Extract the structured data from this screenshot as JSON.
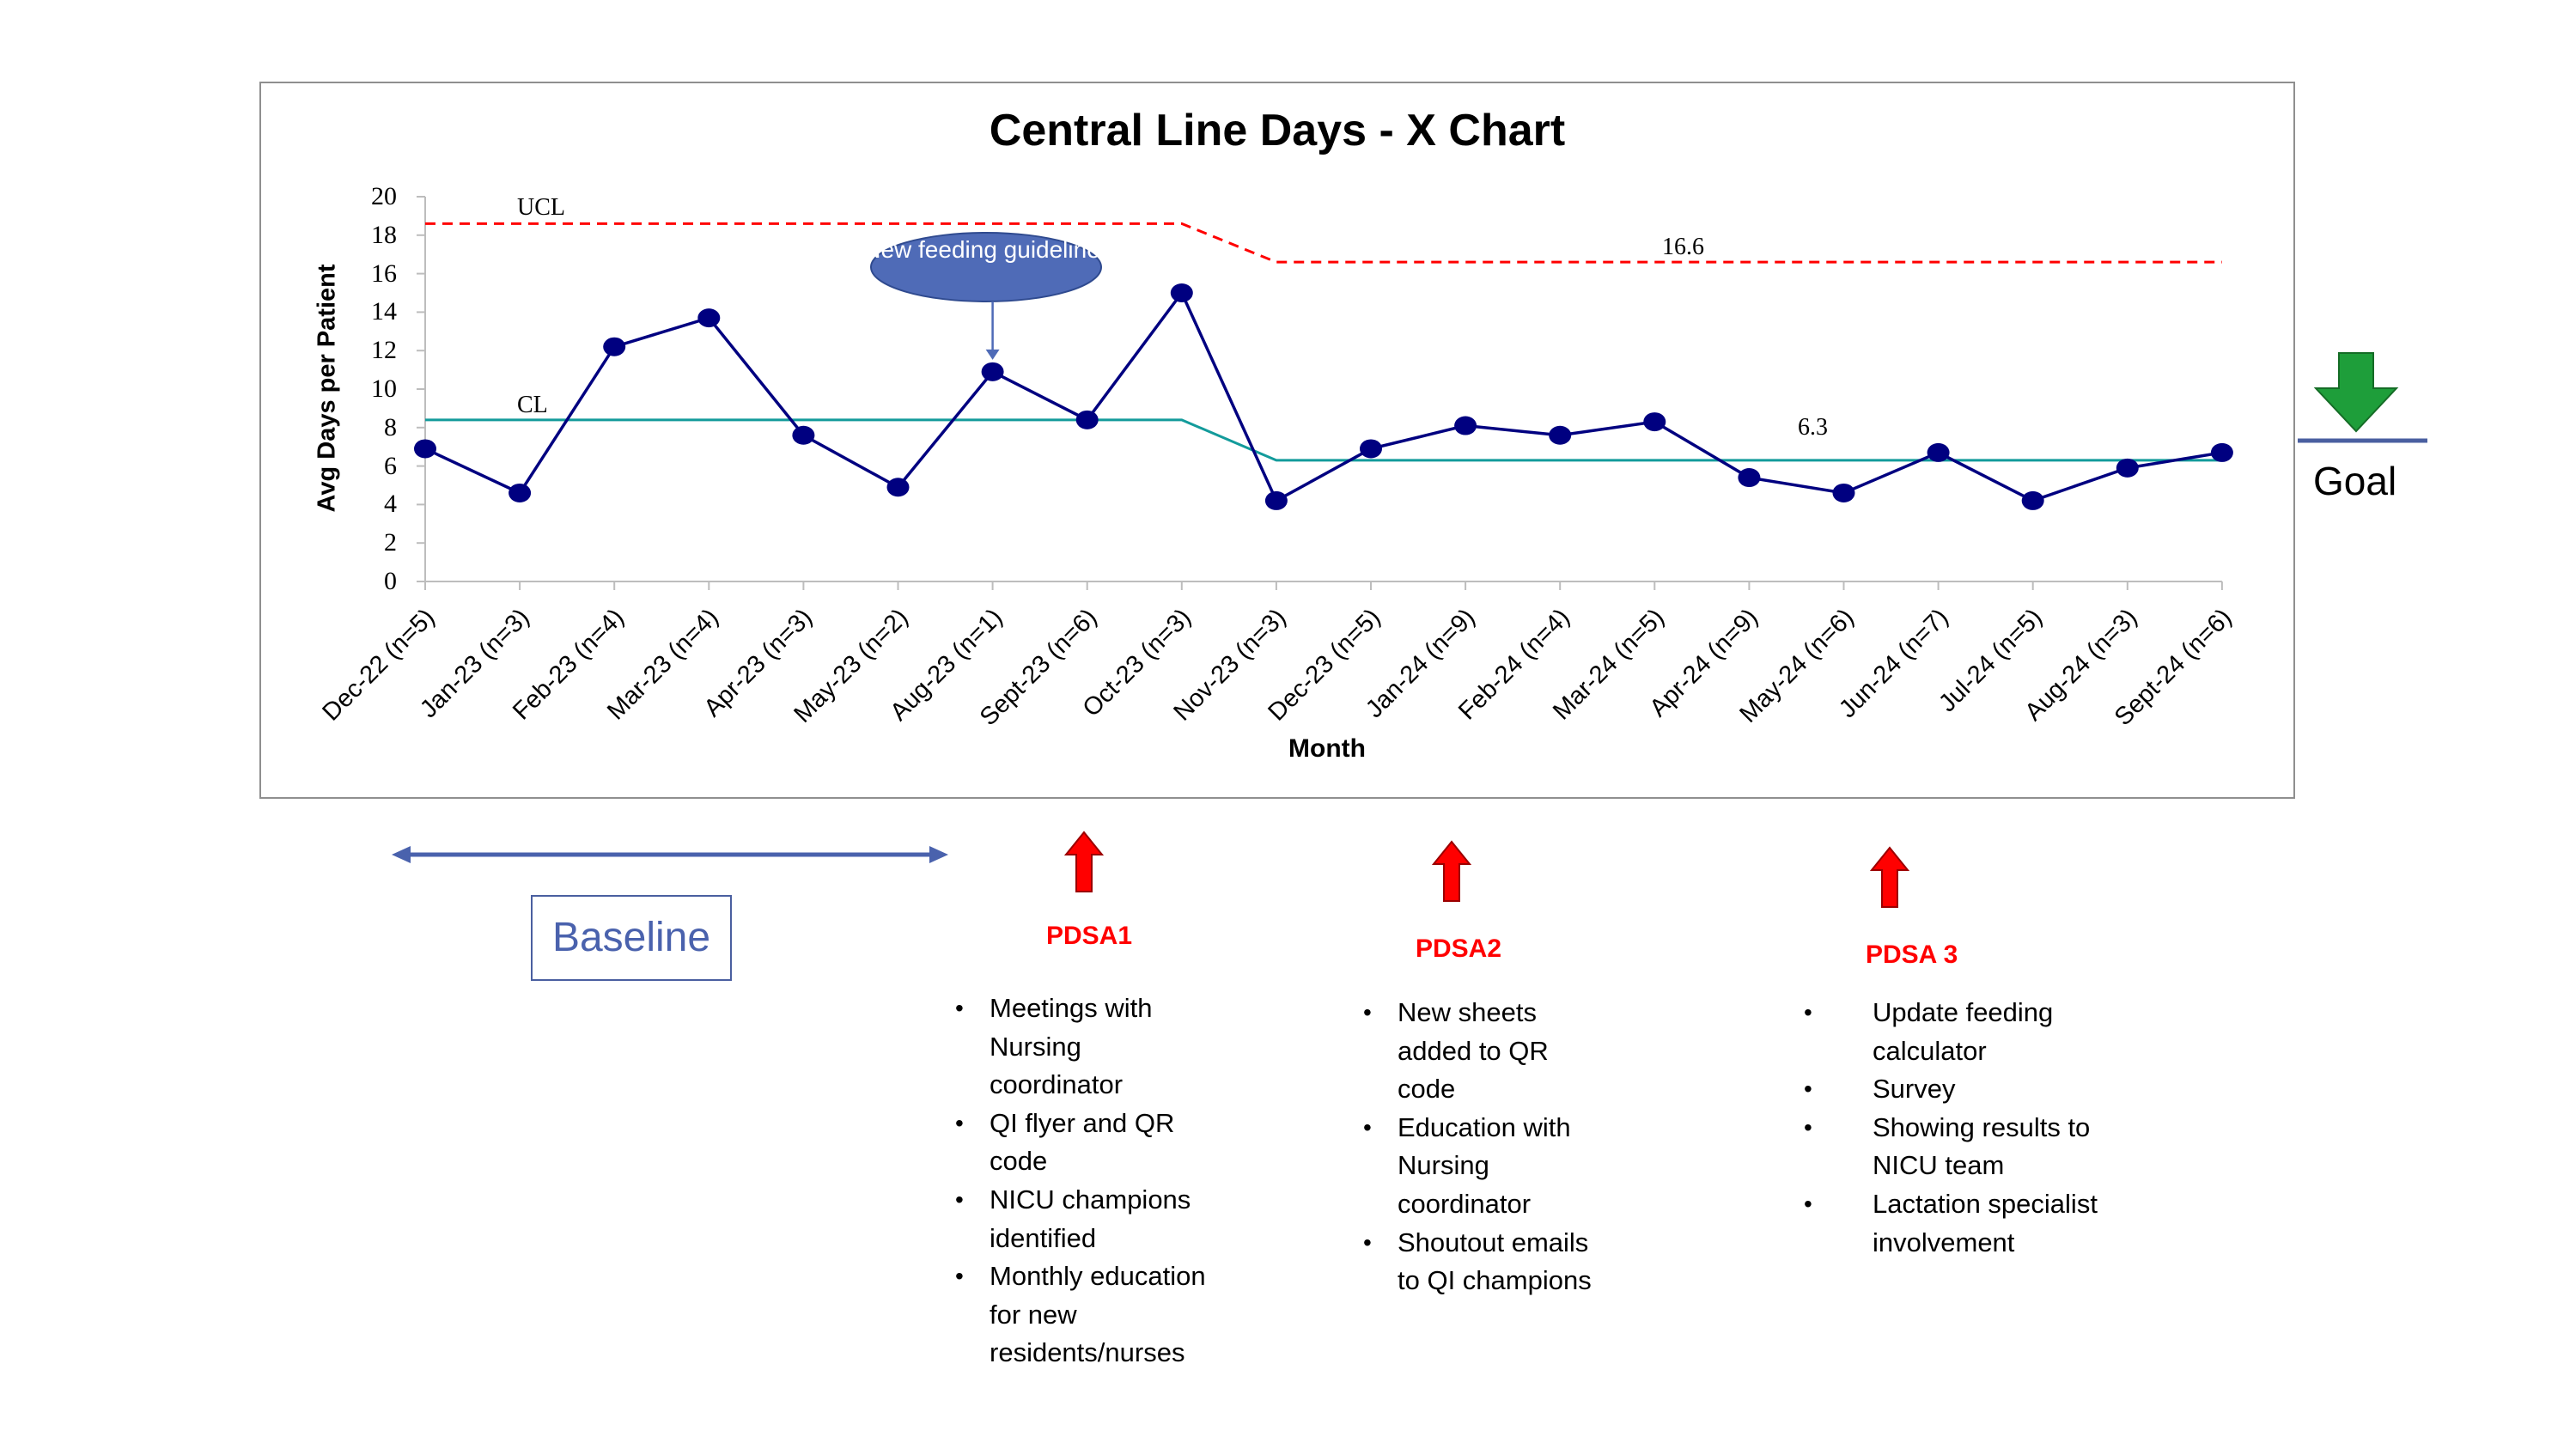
{
  "chart_data": {
    "type": "line",
    "title": "Central Line Days - X Chart",
    "xlabel": "Month",
    "ylabel": "Avg Days per Patient",
    "ylim": [
      0,
      20
    ],
    "yticks": [
      "0",
      "2",
      "4",
      "6",
      "8",
      "10",
      "12",
      "14",
      "16",
      "18",
      "20"
    ],
    "categories": [
      "Dec-22 (n=5)",
      "Jan-23 (n=3)",
      "Feb-23 (n=4)",
      "Mar-23 (n=4)",
      "Apr-23 (n=3)",
      "May-23 (n=2)",
      "Aug-23 (n=1)",
      "Sept-23 (n=6)",
      "Oct-23 (n=3)",
      "Nov-23 (n=3)",
      "Dec-23 (n=5)",
      "Jan-24 (n=9)",
      "Feb-24 (n=4)",
      "Mar-24 (n=5)",
      "Apr-24 (n=9)",
      "May-24 (n=6)",
      "Jun-24 (n=7)",
      "Jul-24 (n=5)",
      "Aug-24 (n=3)",
      "Sept-24 (n=6)"
    ],
    "series": [
      {
        "values": [
          6.9,
          4.6,
          12.2,
          13.7,
          7.6,
          4.9,
          10.9,
          8.4,
          15.0,
          4.2,
          6.9,
          8.1,
          7.6,
          8.3,
          5.4,
          4.6,
          6.7,
          4.2,
          5.9,
          6.7
        ]
      }
    ],
    "ucl": {
      "label": "UCL",
      "values": [
        18.6,
        18.6,
        18.6,
        18.6,
        18.6,
        18.6,
        18.6,
        18.6,
        18.6,
        16.6,
        16.6,
        16.6,
        16.6,
        16.6,
        16.6,
        16.6,
        16.6,
        16.6,
        16.6,
        16.6
      ],
      "value_label": "16.6"
    },
    "cl": {
      "label": "CL",
      "values": [
        8.4,
        8.4,
        8.4,
        8.4,
        8.4,
        8.4,
        8.4,
        8.4,
        8.4,
        6.3,
        6.3,
        6.3,
        6.3,
        6.3,
        6.3,
        6.3,
        6.3,
        6.3,
        6.3,
        6.3
      ],
      "value_label": "6.3"
    },
    "annotation": {
      "text": "New feeding guidelines",
      "category_index": 6
    },
    "colors": {
      "series": "#000080",
      "ucl": "#ff0000",
      "cl": "#139b9b",
      "callout": "#4f6bb7",
      "goal_arrow": "#1e9e3a",
      "goal_line": "#4a5fa0",
      "baseline_arrow": "#4a62ad",
      "pdsa_arrow": "#ff0000"
    },
    "grid": false,
    "legend": "none"
  },
  "goal": {
    "label": "Goal"
  },
  "baseline": {
    "label": "Baseline"
  },
  "pdsa": [
    {
      "title": "PDSA1",
      "items": [
        "Meetings with\nNursing coordinator",
        "QI flyer and QR\ncode",
        "NICU champions\nidentified",
        "Monthly education\nfor new\nresidents/nurses"
      ]
    },
    {
      "title": "PDSA2",
      "items": [
        "New sheets\nadded to QR\ncode",
        "Education with\nNursing\ncoordinator",
        "Shoutout emails\nto QI champions"
      ]
    },
    {
      "title": "PDSA 3",
      "items": [
        "Update feeding\ncalculator",
        "Survey",
        "Showing results to\nNICU team",
        "Lactation specialist\ninvolvement"
      ]
    }
  ]
}
